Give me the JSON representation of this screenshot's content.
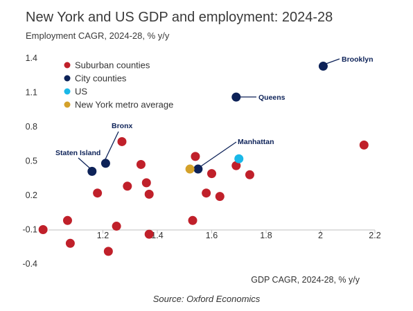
{
  "header": {
    "title": "New York and US GDP and employment: 2024-28",
    "subtitle": "Employment CAGR, 2024-28, % y/y"
  },
  "footer": {
    "source": "Source: Oxford Economics"
  },
  "chart_data": {
    "type": "scatter",
    "title": "New York and US GDP and employment: 2024-28",
    "subtitle": "Employment CAGR, 2024-28, % y/y",
    "xlabel": "GDP CAGR, 2024-28, % y/y",
    "ylabel": "Employment CAGR, 2024-28, % y/y",
    "xlim": [
      1.0,
      2.2
    ],
    "ylim": [
      -0.4,
      1.4
    ],
    "xticks": [
      "1.2",
      "1.4",
      "1.6",
      "1.8",
      "2",
      "2.2"
    ],
    "xtick_values": [
      1.2,
      1.4,
      1.6,
      1.8,
      2.0,
      2.2
    ],
    "yticks": [
      "1.4",
      "1.1",
      "0.8",
      "0.5",
      "0.2",
      "-0.1",
      "-0.4"
    ],
    "ytick_values": [
      1.4,
      1.1,
      0.8,
      0.5,
      0.2,
      -0.1,
      -0.4
    ],
    "grid": false,
    "legend_position": "top-left",
    "series": [
      {
        "name": "Suburban counties",
        "color": "#c0202a",
        "points": [
          {
            "x": 0.98,
            "y": -0.1
          },
          {
            "x": 1.07,
            "y": -0.02
          },
          {
            "x": 1.08,
            "y": -0.22
          },
          {
            "x": 1.18,
            "y": 0.22
          },
          {
            "x": 1.22,
            "y": -0.29
          },
          {
            "x": 1.25,
            "y": -0.07
          },
          {
            "x": 1.27,
            "y": 0.67
          },
          {
            "x": 1.29,
            "y": 0.28
          },
          {
            "x": 1.34,
            "y": 0.47
          },
          {
            "x": 1.36,
            "y": 0.31
          },
          {
            "x": 1.37,
            "y": 0.21
          },
          {
            "x": 1.37,
            "y": -0.14
          },
          {
            "x": 1.53,
            "y": -0.02
          },
          {
            "x": 1.54,
            "y": 0.54
          },
          {
            "x": 1.58,
            "y": 0.22
          },
          {
            "x": 1.6,
            "y": 0.39
          },
          {
            "x": 1.63,
            "y": 0.19
          },
          {
            "x": 1.69,
            "y": 0.46
          },
          {
            "x": 1.74,
            "y": 0.38
          },
          {
            "x": 2.16,
            "y": 0.64
          }
        ]
      },
      {
        "name": "City counties",
        "color": "#0d2258",
        "points": [
          {
            "x": 1.16,
            "y": 0.41,
            "label": "Staten Island"
          },
          {
            "x": 1.21,
            "y": 0.48,
            "label": "Bronx"
          },
          {
            "x": 1.55,
            "y": 0.43,
            "label": "Manhattan"
          },
          {
            "x": 1.69,
            "y": 1.06,
            "label": "Queens"
          },
          {
            "x": 2.01,
            "y": 1.33,
            "label": "Brooklyn"
          }
        ]
      },
      {
        "name": "US",
        "color": "#1ab8e8",
        "points": [
          {
            "x": 1.7,
            "y": 0.52
          }
        ]
      },
      {
        "name": "New York metro average",
        "color": "#d4a12a",
        "points": [
          {
            "x": 1.52,
            "y": 0.43
          }
        ]
      }
    ]
  }
}
